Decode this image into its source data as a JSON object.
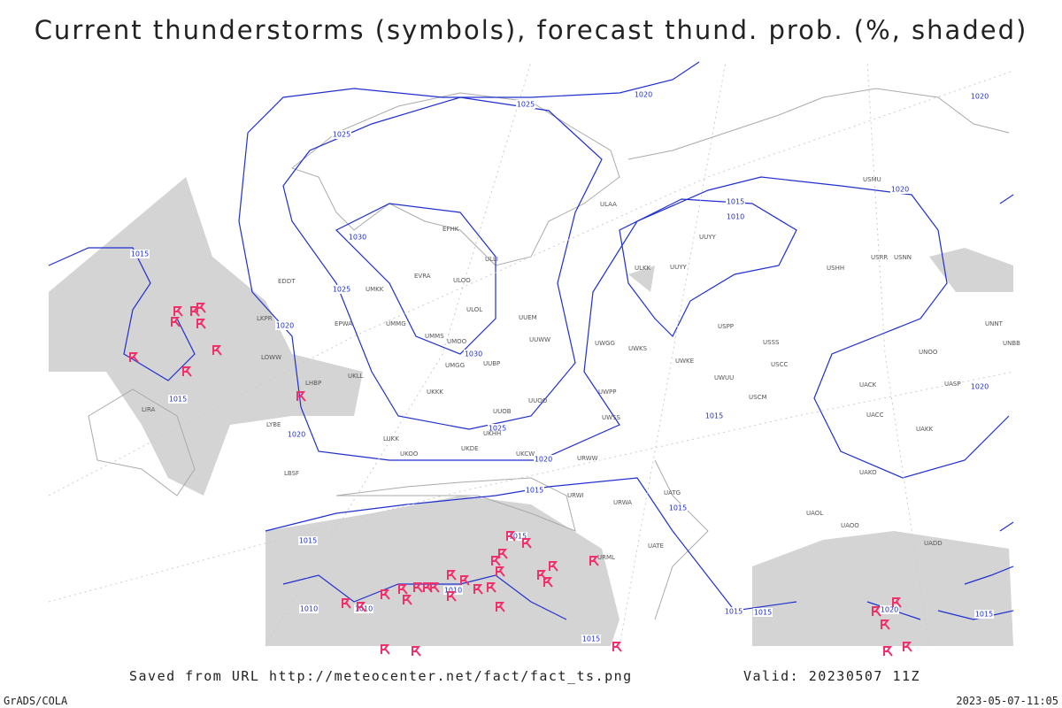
{
  "header": {
    "title": "Current thunderstorms (symbols), forecast thund. prob. (%, shaded)"
  },
  "isobar_labels": [
    1020,
    1025,
    1025,
    1030,
    1025,
    1020,
    1030,
    1015,
    1015,
    1020,
    1025,
    1020,
    1015,
    1015,
    1010,
    1010,
    1010,
    1015,
    1015,
    1015,
    1015,
    1015,
    1015,
    1010,
    1015,
    1020,
    1020,
    1020,
    1020,
    1015
  ],
  "stations": [
    "EFHK",
    "ULAA",
    "ULLI",
    "EVRA",
    "ULOO",
    "EDDT",
    "UMKK",
    "ULOL",
    "UUEM",
    "EPWA",
    "UMMG",
    "LKPR",
    "UMMS",
    "UMOO",
    "UUWW",
    "UWGG",
    "UWKS",
    "UMGG",
    "UUBP",
    "LOWW",
    "UKLL",
    "UWKE",
    "UWPP",
    "UKKK",
    "UUOO",
    "UUOB",
    "UWSS",
    "UKHH",
    "LUKK",
    "UKOO",
    "UKDE",
    "UKCW",
    "URWW",
    "LBSF",
    "LYBE",
    "LHBP",
    "LIRA",
    "UUYY",
    "ULKK",
    "UUYY",
    "USSS",
    "USCC",
    "USCM",
    "UWUU",
    "USPP",
    "USHH",
    "USRR",
    "USNN",
    "USMU",
    "UACC",
    "UACK",
    "UAKK",
    "UAKO",
    "UADD",
    "UATE",
    "UATG",
    "UAOL",
    "UAOO",
    "URML",
    "URWI",
    "URWA",
    "UNOO",
    "UASP",
    "UNBB",
    "UNNT"
  ],
  "footer": {
    "source": "Saved from URL http://meteocenter.net/fact/fact_ts.png",
    "valid": "Valid: 20230507 11Z",
    "credit": "GrADS/COLA",
    "timestamp": "2023-05-07-11:05"
  }
}
